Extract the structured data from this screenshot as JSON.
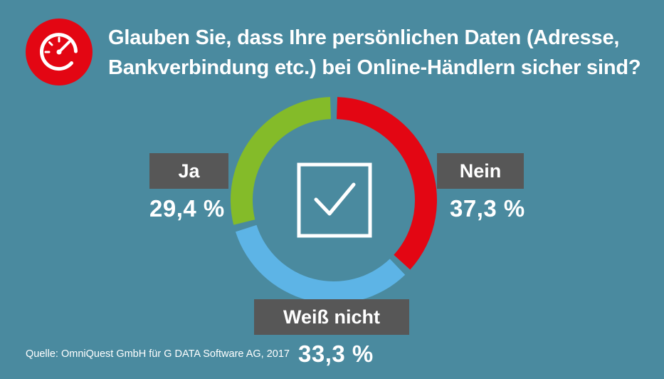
{
  "title": {
    "line1": "Glauben Sie, dass Ihre persönlichen Daten (Adresse,",
    "line2": "Bankverbindung etc.) bei Online-Händlern sicher sind?"
  },
  "colors": {
    "background": "#4a8a9f",
    "ja": "#84bb29",
    "nein": "#e30613",
    "weiss_nicht": "#5db4e6",
    "label_box": "#575757"
  },
  "icons": {
    "title_icon": "speedometer-icon",
    "center_icon": "checkbox-checked-icon"
  },
  "chart_data": {
    "type": "pie",
    "style": "donut",
    "title": "Glauben Sie, dass Ihre persönlichen Daten (Adresse, Bankverbindung etc.) bei Online-Händlern sicher sind?",
    "categories": [
      "Ja",
      "Nein",
      "Weiß nicht"
    ],
    "values": [
      29.4,
      37.3,
      33.3
    ],
    "value_labels": [
      "29,4 %",
      "37,3 %",
      "33,3 %"
    ],
    "unit": "%"
  },
  "source": "Quelle: OmniQuest GmbH für G DATA Software AG, 2017"
}
